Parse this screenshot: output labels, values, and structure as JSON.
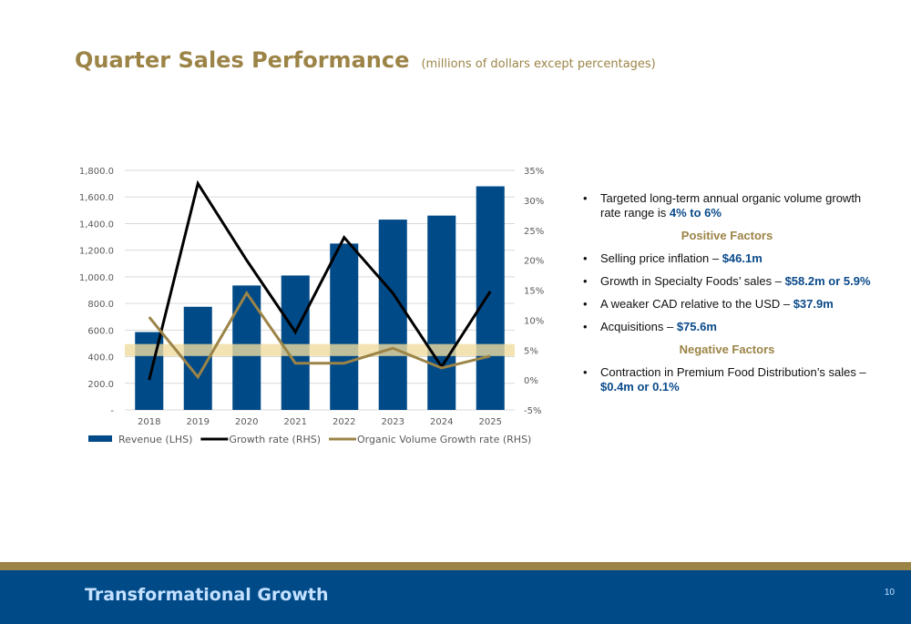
{
  "header": {
    "title": "Quarter Sales Performance",
    "subtitle": "(millions of dollars except percentages)"
  },
  "chart_data": {
    "type": "bar",
    "categories": [
      "2018",
      "2019",
      "2020",
      "2021",
      "2022",
      "2023",
      "2024",
      "2025"
    ],
    "series": [
      {
        "name": "Revenue (LHS)",
        "type": "bar",
        "axis": "left",
        "color": "#004a88",
        "values": [
          585,
          775,
          935,
          1010,
          1250,
          1430,
          1460,
          1680
        ]
      },
      {
        "name": "Growth rate (RHS)",
        "type": "line",
        "axis": "right",
        "color": "#000000",
        "values": [
          0,
          32.8,
          20,
          8,
          23.8,
          14.5,
          2.2,
          14.8
        ]
      },
      {
        "name": "Organic Volume Growth rate (RHS)",
        "type": "line",
        "axis": "right",
        "color": "#9c8447",
        "values": [
          10.5,
          0.5,
          14.5,
          2.8,
          2.8,
          5.3,
          2,
          4
        ]
      }
    ],
    "left_axis": {
      "ylim": [
        0,
        1800
      ],
      "ticks": [
        "-",
        "200.0",
        "400.0",
        "600.0",
        "800.0",
        "1,000.0",
        "1,200.0",
        "1,400.0",
        "1,600.0",
        "1,800.0"
      ]
    },
    "right_axis": {
      "ylim": [
        -5,
        35
      ],
      "ticks": [
        "-5%",
        "0%",
        "5%",
        "10%",
        "15%",
        "20%",
        "25%",
        "30%",
        "35%"
      ]
    },
    "target_band": {
      "from": 4,
      "to": 6,
      "color": "#f0dca0"
    },
    "legend_position": "bottom",
    "grid": true
  },
  "bullets": {
    "b1": {
      "text": "Targeted long-term annual organic volume growth rate range is ",
      "highlight": "4% to 6%"
    },
    "positive_title": "Positive Factors",
    "p1": {
      "text": "Selling price inflation – ",
      "highlight": "$46.1m"
    },
    "p2": {
      "text": "Growth in Specialty Foods’ sales – ",
      "highlight": "$58.2m or 5.9%"
    },
    "p3": {
      "text": "A weaker CAD relative to the USD – ",
      "highlight": "$37.9m"
    },
    "p4": {
      "text": "Acquisitions – ",
      "highlight": "$75.6m"
    },
    "negative_title": "Negative Factors",
    "n1": {
      "text": "Contraction in Premium Food Distribution’s sales – ",
      "highlight": "$0.4m or 0.1%"
    },
    "bullet_char": "•"
  },
  "footer": {
    "text": "Transformational Growth",
    "page": "10"
  }
}
